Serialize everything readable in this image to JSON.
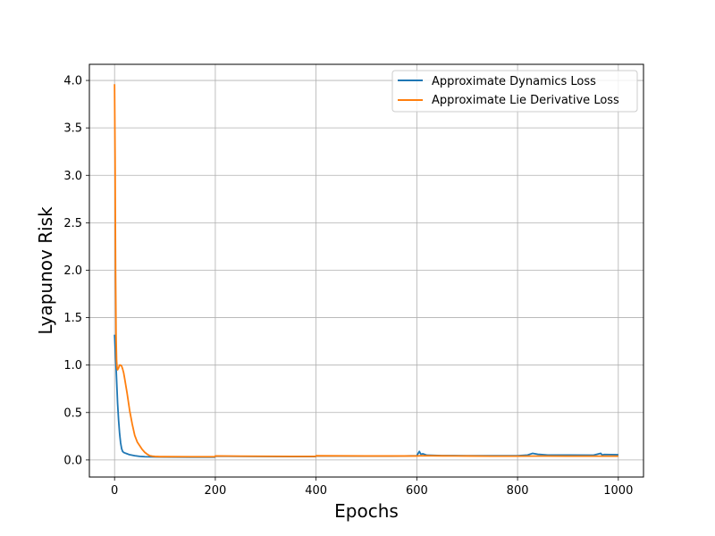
{
  "chart_data": {
    "type": "line",
    "title": "",
    "xlabel": "Epochs",
    "ylabel": "Lyapunov Risk",
    "xlim": [
      -50,
      1050
    ],
    "ylim": [
      -0.18,
      4.17
    ],
    "xticks": [
      0,
      200,
      400,
      600,
      800,
      1000
    ],
    "yticks": [
      0.0,
      0.5,
      1.0,
      1.5,
      2.0,
      2.5,
      3.0,
      3.5,
      4.0
    ],
    "xtick_labels": [
      "0",
      "200",
      "400",
      "600",
      "800",
      "1000"
    ],
    "ytick_labels": [
      "0.0",
      "0.5",
      "1.0",
      "1.5",
      "2.0",
      "2.5",
      "3.0",
      "3.5",
      "4.0"
    ],
    "grid": true,
    "legend_position": "top-right",
    "series": [
      {
        "name": "Approximate Dynamics Loss",
        "color": "#1f77b4",
        "x": [
          0,
          2,
          4,
          6,
          8,
          10,
          12,
          14,
          16,
          18,
          20,
          25,
          30,
          40,
          50,
          60,
          80,
          100,
          150,
          199,
          200,
          250,
          300,
          350,
          399,
          400,
          450,
          500,
          550,
          600,
          605,
          608,
          612,
          620,
          650,
          700,
          750,
          800,
          820,
          830,
          835,
          840,
          860,
          900,
          950,
          965,
          968,
          972,
          1000
        ],
        "y": [
          1.32,
          1.1,
          0.85,
          0.6,
          0.42,
          0.28,
          0.18,
          0.12,
          0.09,
          0.08,
          0.075,
          0.065,
          0.055,
          0.045,
          0.038,
          0.034,
          0.032,
          0.031,
          0.03,
          0.03,
          0.04,
          0.038,
          0.037,
          0.036,
          0.036,
          0.042,
          0.041,
          0.04,
          0.04,
          0.045,
          0.09,
          0.06,
          0.065,
          0.05,
          0.046,
          0.045,
          0.045,
          0.045,
          0.052,
          0.07,
          0.065,
          0.06,
          0.052,
          0.052,
          0.05,
          0.07,
          0.052,
          0.058,
          0.055
        ]
      },
      {
        "name": "Approximate Lie Derivative Loss",
        "color": "#ff7f0e",
        "x": [
          0,
          1,
          2,
          3,
          4,
          5,
          6,
          8,
          10,
          12,
          14,
          16,
          18,
          20,
          25,
          30,
          35,
          40,
          45,
          50,
          55,
          60,
          65,
          70,
          75,
          80,
          90,
          100,
          150,
          199,
          200,
          250,
          300,
          350,
          399,
          400,
          450,
          500,
          550,
          600,
          610,
          650,
          700,
          750,
          800,
          850,
          900,
          950,
          1000
        ],
        "y": [
          3.96,
          3.2,
          2.0,
          1.3,
          1.05,
          0.97,
          0.95,
          0.97,
          1.0,
          1.0,
          0.99,
          0.96,
          0.92,
          0.86,
          0.7,
          0.52,
          0.38,
          0.26,
          0.19,
          0.15,
          0.11,
          0.08,
          0.06,
          0.045,
          0.04,
          0.037,
          0.035,
          0.035,
          0.034,
          0.034,
          0.042,
          0.04,
          0.039,
          0.038,
          0.038,
          0.044,
          0.043,
          0.042,
          0.042,
          0.042,
          0.045,
          0.043,
          0.042,
          0.04,
          0.04,
          0.041,
          0.04,
          0.04,
          0.04
        ]
      }
    ]
  }
}
